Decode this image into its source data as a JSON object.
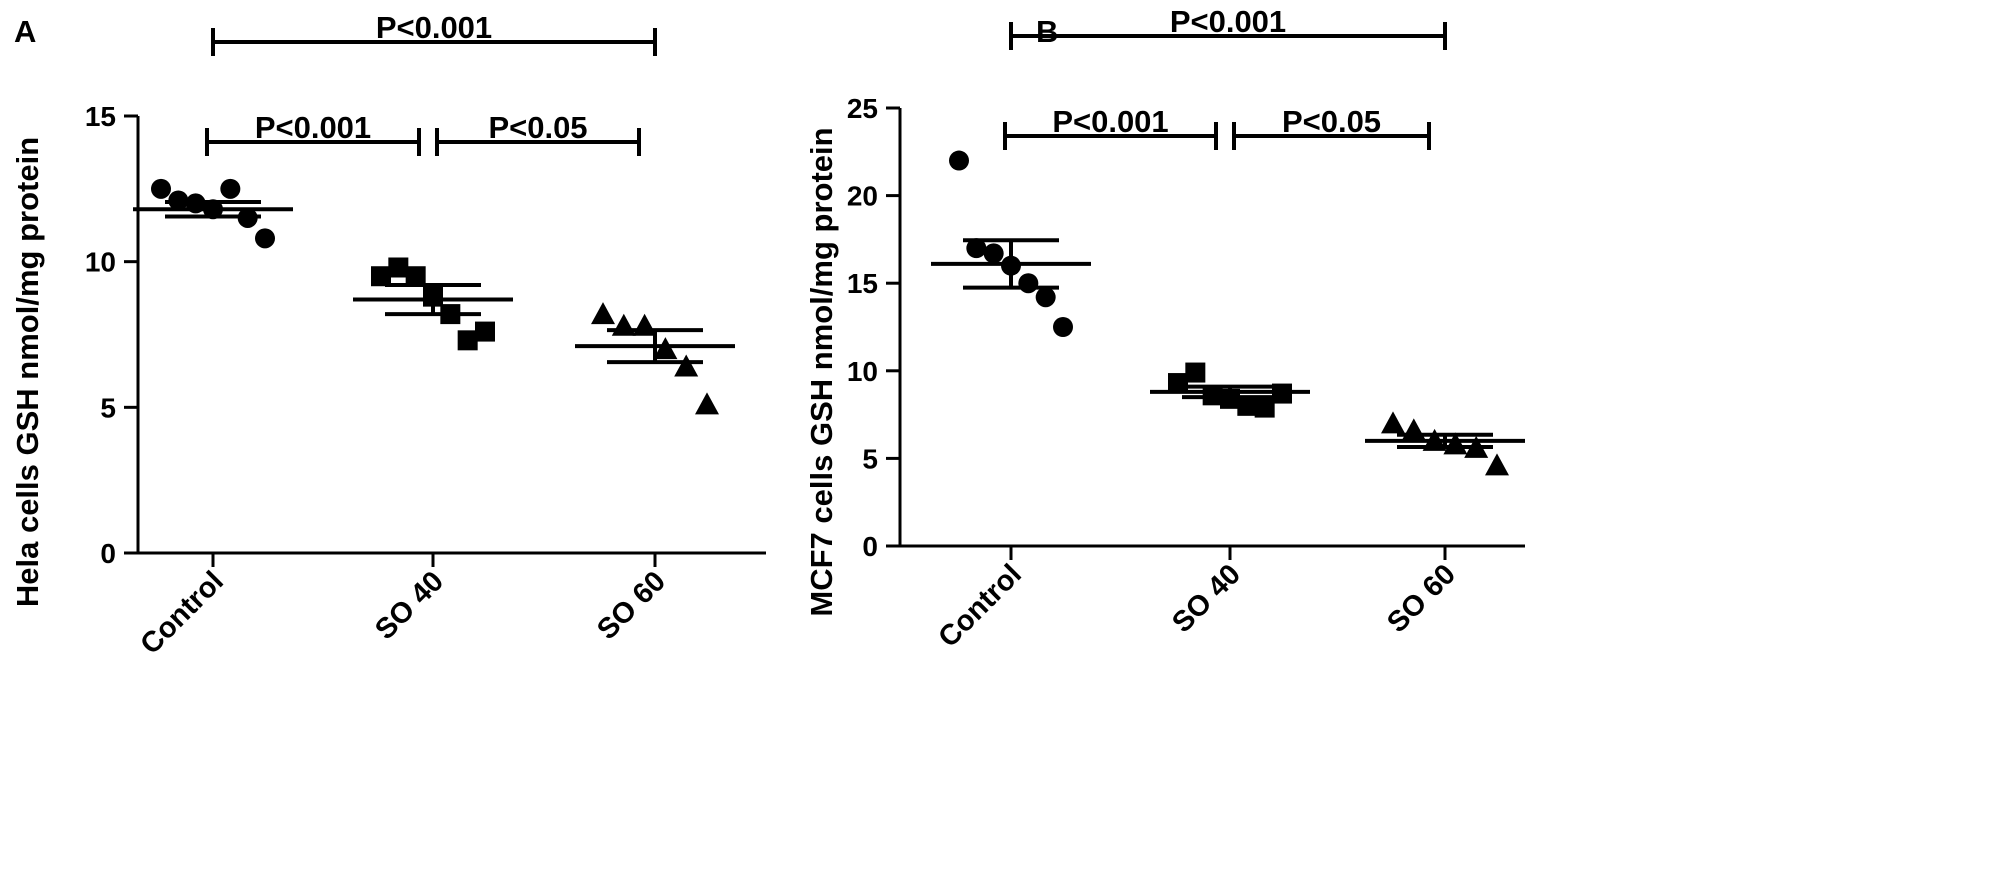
{
  "chart_data": [
    {
      "panel_label": "A",
      "type": "scatter",
      "ylabel": "Hela cells GSH nmol/mg protein",
      "xlabel": "",
      "title": "",
      "categories": [
        "Control",
        "SO 40",
        "SO 60"
      ],
      "ylim": [
        0,
        15
      ],
      "yticks": [
        0,
        5,
        10,
        15
      ],
      "markers": [
        "circle",
        "square",
        "triangle"
      ],
      "points": [
        [
          12.5,
          12.1,
          12.0,
          11.8,
          12.5,
          11.5,
          10.8
        ],
        [
          9.5,
          9.8,
          9.5,
          8.8,
          8.2,
          7.3,
          7.6
        ],
        [
          8.2,
          7.8,
          7.8,
          7.0,
          6.4,
          5.1
        ]
      ],
      "mean": [
        11.8,
        8.7,
        7.1
      ],
      "sem": [
        0.25,
        0.5,
        0.55
      ],
      "comparisons": [
        {
          "from": "Control",
          "to": "SO 60",
          "label": "P<0.001"
        },
        {
          "from": "Control",
          "to": "SO 40",
          "label": "P<0.001"
        },
        {
          "from": "SO 40",
          "to": "SO 60",
          "label": "P<0.05"
        }
      ]
    },
    {
      "panel_label": "B",
      "type": "scatter",
      "ylabel": "MCF7 cells GSH nmol/mg protein",
      "xlabel": "",
      "title": "",
      "categories": [
        "Control",
        "SO 40",
        "SO 60"
      ],
      "ylim": [
        0,
        25
      ],
      "yticks": [
        0,
        5,
        10,
        15,
        20,
        25
      ],
      "markers": [
        "circle",
        "square",
        "triangle"
      ],
      "points": [
        [
          22.0,
          17.0,
          16.7,
          16.0,
          15.0,
          14.2,
          12.5
        ],
        [
          9.3,
          9.9,
          8.6,
          8.4,
          8.0,
          7.9,
          8.7
        ],
        [
          7.0,
          6.6,
          6.0,
          5.8,
          5.6,
          4.6
        ]
      ],
      "mean": [
        16.1,
        8.8,
        6.0
      ],
      "sem": [
        1.35,
        0.3,
        0.35
      ],
      "comparisons": [
        {
          "from": "Control",
          "to": "SO 60",
          "label": "P<0.001"
        },
        {
          "from": "Control",
          "to": "SO 40",
          "label": "P<0.001"
        },
        {
          "from": "SO 40",
          "to": "SO 60",
          "label": "P<0.05"
        }
      ]
    }
  ]
}
